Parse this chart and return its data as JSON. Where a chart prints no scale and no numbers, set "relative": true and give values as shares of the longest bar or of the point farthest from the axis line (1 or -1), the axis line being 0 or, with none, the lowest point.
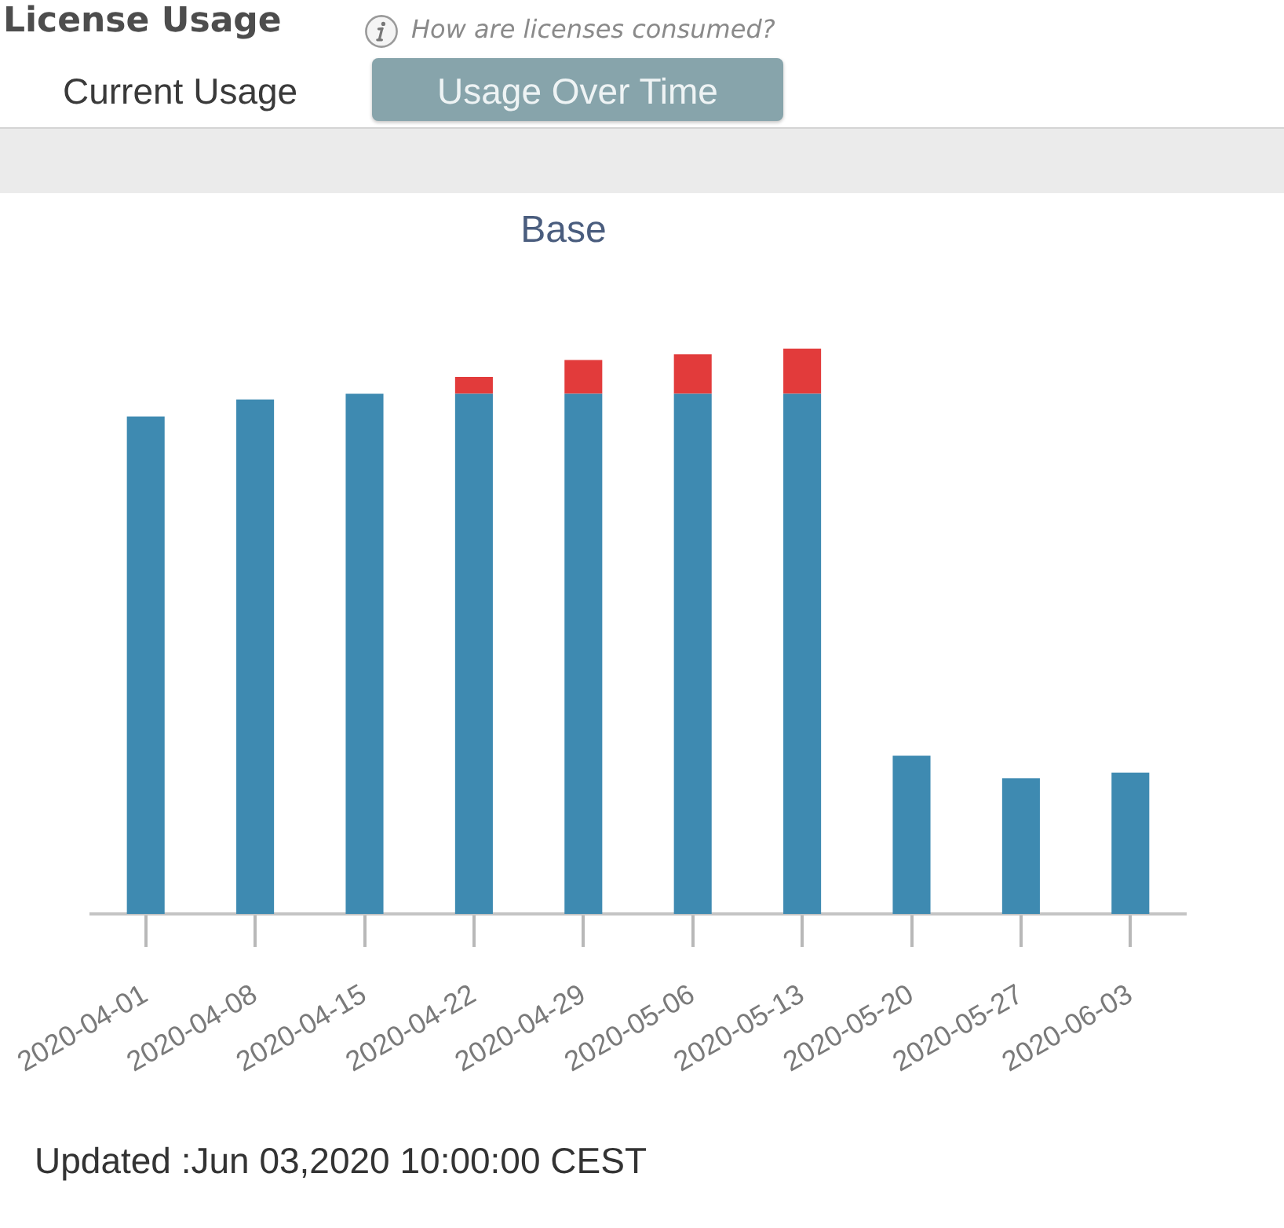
{
  "chart_data": {
    "type": "bar",
    "title": "Base",
    "categories": [
      "2020-04-01",
      "2020-04-08",
      "2020-04-15",
      "2020-04-22",
      "2020-04-29",
      "2020-05-06",
      "2020-05-13",
      "2020-05-20",
      "2020-05-27",
      "2020-06-03"
    ],
    "stacked": true,
    "relative": true,
    "legend": false,
    "grid": false,
    "tick_labels": "x",
    "series": [
      {
        "color": "#3e8ab1",
        "values": [
          0.88,
          0.91,
          0.92,
          0.92,
          0.92,
          0.92,
          0.92,
          0.28,
          0.24,
          0.25
        ]
      },
      {
        "color": "#e23b3b",
        "values": [
          null,
          null,
          null,
          0.03,
          0.06,
          0.07,
          0.08,
          null,
          null,
          null
        ]
      }
    ],
    "annotations": [
      "License Usage",
      "How are licenses consumed?",
      "Current Usage",
      "Usage Over Time",
      "Updated :Jun 03,2020 10:00:00 CEST"
    ]
  }
}
